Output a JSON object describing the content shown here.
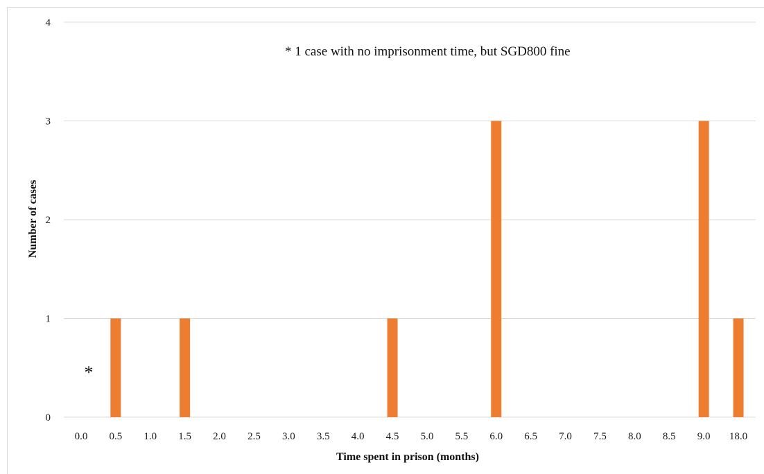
{
  "chart_data": {
    "type": "bar",
    "categories": [
      "0.0",
      "0.5",
      "1.0",
      "1.5",
      "2.0",
      "2.5",
      "3.0",
      "3.5",
      "4.0",
      "4.5",
      "5.0",
      "5.5",
      "6.0",
      "6.5",
      "7.0",
      "7.5",
      "8.0",
      "8.5",
      "9.0",
      "18.0"
    ],
    "values": [
      0,
      1,
      0,
      1,
      0,
      0,
      0,
      0,
      0,
      1,
      0,
      0,
      3,
      0,
      0,
      0,
      0,
      0,
      3,
      1
    ],
    "xlabel": "Time spent in prison (months)",
    "ylabel": "Number of cases",
    "ylim": [
      0,
      4
    ],
    "yticks": [
      0,
      1,
      2,
      3,
      4
    ],
    "grid": true,
    "bar_color": "#ed7d31",
    "annotations": {
      "note": "* 1 case with no imprisonment time, but SGD800 fine",
      "marker": "*"
    }
  }
}
